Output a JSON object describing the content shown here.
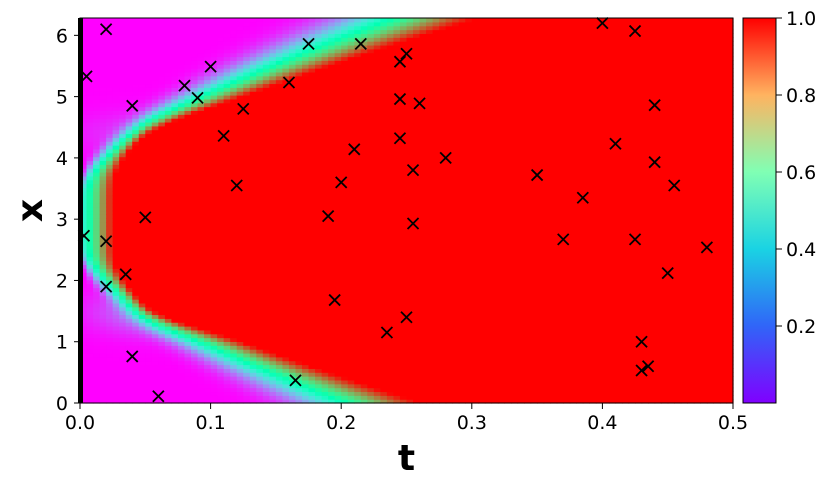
{
  "chart_data": {
    "type": "heatmap",
    "title": "",
    "xlabel": "t",
    "ylabel": "x",
    "xlim": [
      0,
      0.5
    ],
    "ylim": [
      0,
      6.283
    ],
    "xticks": [
      "0.0",
      "0.1",
      "0.2",
      "0.3",
      "0.4",
      "0.5"
    ],
    "yticks": [
      "0",
      "1",
      "2",
      "3",
      "4",
      "5",
      "6"
    ],
    "colormap": "rainbow",
    "colorbar": {
      "range": [
        0,
        1.0
      ],
      "ticks": [
        "0.2",
        "0.4",
        "0.6",
        "0.8",
        "1.0"
      ]
    },
    "marker": "x",
    "points": [
      [
        0.02,
        6.1
      ],
      [
        0.005,
        5.33
      ],
      [
        0.04,
        4.85
      ],
      [
        0.08,
        5.18
      ],
      [
        0.09,
        4.98
      ],
      [
        0.1,
        5.49
      ],
      [
        0.11,
        4.36
      ],
      [
        0.125,
        4.8
      ],
      [
        0.12,
        3.55
      ],
      [
        0.05,
        3.03
      ],
      [
        0.003,
        2.73
      ],
      [
        0.02,
        2.64
      ],
      [
        0.035,
        2.1
      ],
      [
        0.02,
        1.9
      ],
      [
        0.04,
        0.76
      ],
      [
        0.06,
        0.11
      ],
      [
        0.16,
        5.23
      ],
      [
        0.175,
        5.86
      ],
      [
        0.215,
        5.86
      ],
      [
        0.25,
        5.7
      ],
      [
        0.245,
        5.57
      ],
      [
        0.245,
        4.96
      ],
      [
        0.26,
        4.89
      ],
      [
        0.245,
        4.32
      ],
      [
        0.21,
        4.14
      ],
      [
        0.2,
        3.6
      ],
      [
        0.255,
        3.8
      ],
      [
        0.28,
        4.0
      ],
      [
        0.19,
        3.05
      ],
      [
        0.255,
        2.93
      ],
      [
        0.195,
        1.68
      ],
      [
        0.235,
        1.15
      ],
      [
        0.25,
        1.4
      ],
      [
        0.165,
        0.37
      ],
      [
        0.35,
        3.72
      ],
      [
        0.37,
        2.67
      ],
      [
        0.385,
        3.35
      ],
      [
        0.4,
        6.2
      ],
      [
        0.425,
        6.07
      ],
      [
        0.41,
        4.23
      ],
      [
        0.44,
        4.86
      ],
      [
        0.44,
        3.93
      ],
      [
        0.455,
        3.55
      ],
      [
        0.425,
        2.67
      ],
      [
        0.45,
        2.12
      ],
      [
        0.48,
        2.54
      ],
      [
        0.43,
        1.0
      ],
      [
        0.43,
        0.53
      ],
      [
        0.435,
        0.6
      ]
    ]
  }
}
